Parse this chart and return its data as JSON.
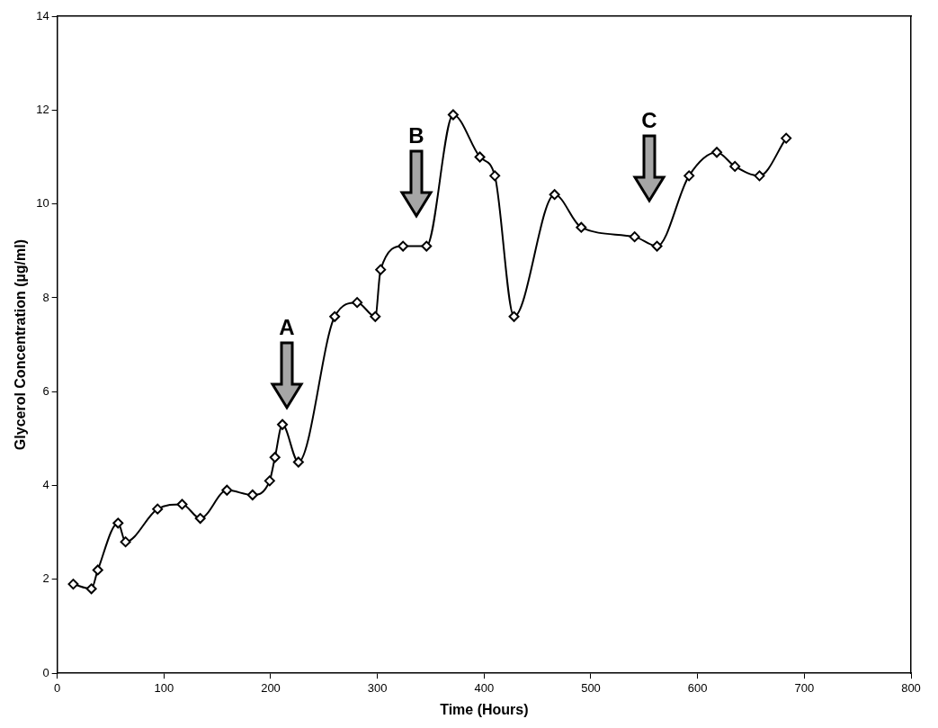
{
  "chart_data": {
    "type": "line",
    "xlabel": "Time (Hours)",
    "ylabel": "Glycerol Concentration (µg/ml)",
    "xlim": [
      0,
      800
    ],
    "xticks": [
      0,
      100,
      200,
      300,
      400,
      500,
      600,
      700,
      800
    ],
    "ylim": [
      0,
      14
    ],
    "yticks": [
      0,
      2,
      4,
      6,
      8,
      10,
      12,
      14
    ],
    "grid": false,
    "legend": false,
    "marker": "diamond",
    "line_style": "solid",
    "annotations": [
      "A",
      "B",
      "C"
    ],
    "series": [
      {
        "color": "#000000",
        "x": [
          15,
          32,
          38,
          57,
          64,
          94,
          117,
          134,
          159,
          183,
          199,
          204,
          211,
          226,
          260,
          281,
          298,
          303,
          324,
          346,
          371,
          396,
          410,
          428,
          466,
          491,
          541,
          562,
          592,
          618,
          635,
          658,
          683
        ],
        "values": [
          1.9,
          1.8,
          2.2,
          3.2,
          2.8,
          3.5,
          3.6,
          3.3,
          3.9,
          3.8,
          4.1,
          4.6,
          5.3,
          4.5,
          7.6,
          7.9,
          7.6,
          8.6,
          9.1,
          9.1,
          11.9,
          11.0,
          10.6,
          7.6,
          10.2,
          9.5,
          9.3,
          9.1,
          10.6,
          11.1,
          10.8,
          10.6,
          11.4
        ]
      }
    ]
  }
}
